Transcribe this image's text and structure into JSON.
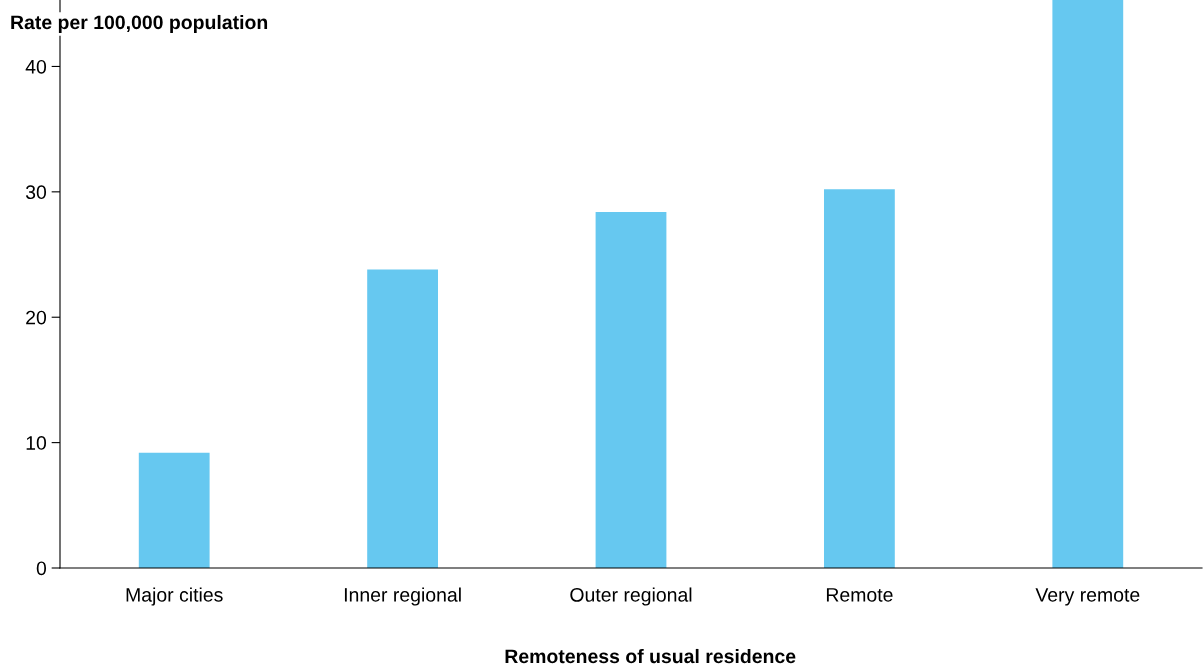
{
  "chart_data": {
    "type": "bar",
    "ylabel": "Rate per 100,000 population",
    "xlabel": "Remoteness of usual residence",
    "categories": [
      "Major cities",
      "Inner regional",
      "Outer regional",
      "Remote",
      "Very remote"
    ],
    "values": [
      9.2,
      23.8,
      28.4,
      30.2,
      45.3
    ],
    "color": "#66c8f0",
    "ylim": [
      0,
      45.3
    ],
    "yticks": [
      0,
      10,
      20,
      30,
      40
    ],
    "grid": false,
    "legend": false
  }
}
